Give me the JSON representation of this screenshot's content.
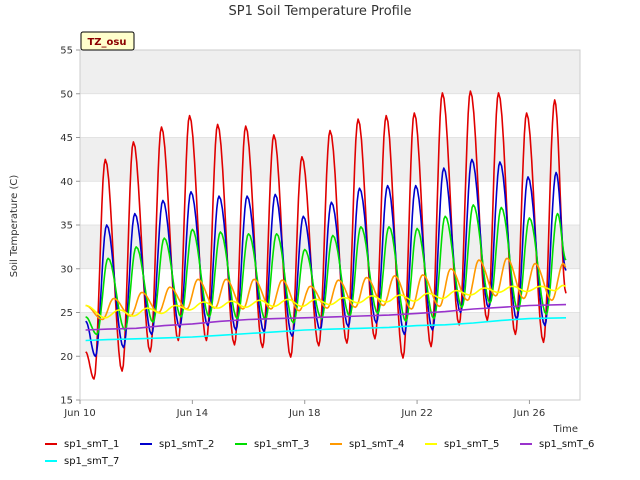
{
  "chart_data": {
    "type": "line",
    "title": "SP1 Soil Temperature Profile",
    "xlabel": "Time",
    "ylabel": "Soil Temperature (C)",
    "badge": "TZ_osu",
    "x_ticks": [
      "Jun 10",
      "Jun 14",
      "Jun 18",
      "Jun 22",
      "Jun 26"
    ],
    "y_ticks": [
      15,
      20,
      25,
      30,
      35,
      40,
      45,
      50,
      55
    ],
    "ylim": [
      15,
      55
    ],
    "xlim_days": [
      10,
      27.8
    ],
    "grid": true,
    "band_color": "#efefef",
    "legend_placement": "bottom",
    "series": [
      {
        "name": "sp1_smT_1",
        "color": "#e00000",
        "peaks": [
          [
            10.9,
            42.5
          ],
          [
            11.9,
            44.5
          ],
          [
            12.9,
            46.2
          ],
          [
            13.9,
            47.5
          ],
          [
            14.9,
            46.5
          ],
          [
            15.9,
            46.3
          ],
          [
            16.9,
            45.3
          ],
          [
            17.9,
            42.8
          ],
          [
            18.9,
            45.8
          ],
          [
            19.9,
            47.1
          ],
          [
            20.9,
            47.5
          ],
          [
            21.9,
            47.8
          ],
          [
            22.9,
            50.1
          ],
          [
            23.9,
            50.3
          ],
          [
            24.9,
            50.1
          ],
          [
            25.9,
            47.8
          ],
          [
            26.9,
            49.3
          ]
        ],
        "troughs": [
          [
            10.5,
            17.4
          ],
          [
            11.5,
            18.3
          ],
          [
            12.5,
            20.5
          ],
          [
            13.5,
            21.8
          ],
          [
            14.5,
            21.8
          ],
          [
            15.5,
            21.3
          ],
          [
            16.5,
            21.0
          ],
          [
            17.5,
            19.9
          ],
          [
            18.5,
            21.2
          ],
          [
            19.5,
            21.5
          ],
          [
            20.5,
            22.0
          ],
          [
            21.5,
            19.8
          ],
          [
            22.5,
            21.1
          ],
          [
            23.5,
            23.6
          ],
          [
            24.5,
            24.1
          ],
          [
            25.5,
            22.5
          ],
          [
            26.5,
            21.6
          ]
        ],
        "start": [
          10.2,
          20.5
        ],
        "end": [
          27.3,
          27.2
        ]
      },
      {
        "name": "sp1_smT_2",
        "color": "#0000cc",
        "peaks": [
          [
            10.95,
            35.0
          ],
          [
            11.95,
            36.3
          ],
          [
            12.95,
            37.8
          ],
          [
            13.95,
            38.8
          ],
          [
            14.95,
            38.3
          ],
          [
            15.95,
            38.3
          ],
          [
            16.95,
            38.5
          ],
          [
            17.95,
            36.0
          ],
          [
            18.95,
            37.6
          ],
          [
            19.95,
            39.2
          ],
          [
            20.95,
            39.5
          ],
          [
            21.95,
            39.5
          ],
          [
            22.95,
            41.5
          ],
          [
            23.95,
            42.5
          ],
          [
            24.95,
            42.2
          ],
          [
            25.95,
            40.5
          ],
          [
            26.95,
            41.0
          ]
        ],
        "troughs": [
          [
            10.55,
            20.0
          ],
          [
            11.55,
            21.0
          ],
          [
            12.55,
            22.5
          ],
          [
            13.55,
            23.3
          ],
          [
            14.55,
            23.5
          ],
          [
            15.55,
            23.0
          ],
          [
            16.55,
            22.8
          ],
          [
            17.55,
            22.3
          ],
          [
            18.55,
            23.0
          ],
          [
            19.55,
            23.4
          ],
          [
            20.55,
            23.8
          ],
          [
            21.55,
            22.5
          ],
          [
            22.55,
            23.0
          ],
          [
            23.55,
            25.0
          ],
          [
            24.55,
            25.5
          ],
          [
            25.55,
            24.2
          ],
          [
            26.55,
            23.5
          ]
        ],
        "start": [
          10.2,
          24.0
        ],
        "end": [
          27.3,
          29.8
        ]
      },
      {
        "name": "sp1_smT_3",
        "color": "#00dd00",
        "peaks": [
          [
            11.0,
            31.2
          ],
          [
            12.0,
            32.5
          ],
          [
            13.0,
            33.5
          ],
          [
            14.0,
            34.5
          ],
          [
            15.0,
            34.2
          ],
          [
            16.0,
            34.0
          ],
          [
            17.0,
            34.0
          ],
          [
            18.0,
            32.2
          ],
          [
            19.0,
            33.8
          ],
          [
            20.0,
            34.8
          ],
          [
            21.0,
            34.8
          ],
          [
            22.0,
            34.6
          ],
          [
            23.0,
            36.0
          ],
          [
            24.0,
            37.3
          ],
          [
            25.0,
            37.0
          ],
          [
            26.0,
            35.8
          ],
          [
            27.0,
            36.3
          ]
        ],
        "troughs": [
          [
            10.6,
            22.5
          ],
          [
            11.6,
            23.0
          ],
          [
            12.6,
            23.9
          ],
          [
            13.6,
            24.5
          ],
          [
            14.6,
            24.5
          ],
          [
            15.6,
            24.3
          ],
          [
            16.6,
            24.2
          ],
          [
            17.6,
            23.8
          ],
          [
            18.6,
            24.3
          ],
          [
            19.6,
            24.6
          ],
          [
            20.6,
            24.9
          ],
          [
            21.6,
            24.0
          ],
          [
            22.6,
            24.3
          ],
          [
            23.6,
            25.6
          ],
          [
            24.6,
            26.1
          ],
          [
            25.6,
            25.2
          ],
          [
            26.6,
            24.8
          ]
        ],
        "start": [
          10.2,
          24.5
        ],
        "end": [
          27.3,
          31.0
        ]
      },
      {
        "name": "sp1_smT_4",
        "color": "#ff9900",
        "peaks": [
          [
            11.2,
            26.6
          ],
          [
            12.2,
            27.3
          ],
          [
            13.2,
            27.9
          ],
          [
            14.2,
            28.8
          ],
          [
            15.2,
            28.8
          ],
          [
            16.2,
            28.8
          ],
          [
            17.2,
            28.7
          ],
          [
            18.2,
            28.0
          ],
          [
            19.2,
            28.7
          ],
          [
            20.2,
            29.0
          ],
          [
            21.2,
            29.2
          ],
          [
            22.2,
            29.3
          ],
          [
            23.2,
            30.0
          ],
          [
            24.2,
            31.0
          ],
          [
            25.2,
            31.2
          ],
          [
            26.2,
            30.6
          ],
          [
            27.2,
            30.6
          ]
        ],
        "troughs": [
          [
            10.8,
            24.2
          ],
          [
            11.8,
            24.6
          ],
          [
            12.8,
            25.0
          ],
          [
            13.8,
            25.4
          ],
          [
            14.8,
            25.5
          ],
          [
            15.8,
            25.4
          ],
          [
            16.8,
            25.4
          ],
          [
            17.8,
            25.2
          ],
          [
            18.8,
            25.5
          ],
          [
            19.8,
            25.6
          ],
          [
            20.8,
            25.8
          ],
          [
            21.8,
            25.4
          ],
          [
            22.8,
            25.7
          ],
          [
            23.8,
            26.4
          ],
          [
            24.8,
            26.9
          ],
          [
            25.8,
            26.6
          ],
          [
            26.8,
            26.4
          ]
        ],
        "start": [
          10.2,
          25.8
        ],
        "end": [
          27.3,
          30.2
        ]
      },
      {
        "name": "sp1_smT_5",
        "color": "#ffff00",
        "peaks": [
          [
            11.4,
            25.3
          ],
          [
            12.4,
            25.5
          ],
          [
            13.4,
            25.8
          ],
          [
            14.4,
            26.2
          ],
          [
            15.4,
            26.3
          ],
          [
            16.4,
            26.4
          ],
          [
            17.4,
            26.5
          ],
          [
            18.4,
            26.5
          ],
          [
            19.4,
            26.7
          ],
          [
            20.4,
            26.9
          ],
          [
            21.4,
            27.0
          ],
          [
            22.4,
            27.2
          ],
          [
            23.4,
            27.5
          ],
          [
            24.4,
            27.8
          ],
          [
            25.4,
            28.0
          ],
          [
            26.4,
            28.0
          ],
          [
            27.2,
            28.1
          ]
        ],
        "troughs": [
          [
            10.9,
            24.4
          ],
          [
            11.9,
            24.6
          ],
          [
            12.9,
            24.9
          ],
          [
            13.9,
            25.3
          ],
          [
            14.9,
            25.5
          ],
          [
            15.9,
            25.6
          ],
          [
            16.9,
            25.7
          ],
          [
            17.9,
            25.7
          ],
          [
            18.9,
            25.9
          ],
          [
            19.9,
            26.1
          ],
          [
            20.9,
            26.2
          ],
          [
            21.9,
            26.3
          ],
          [
            22.9,
            26.6
          ],
          [
            23.9,
            27.0
          ],
          [
            24.9,
            27.3
          ],
          [
            25.9,
            27.4
          ],
          [
            26.9,
            27.5
          ]
        ],
        "start": [
          10.2,
          25.8
        ],
        "end": [
          27.3,
          28.0
        ]
      },
      {
        "name": "sp1_smT_6",
        "color": "#9933cc",
        "line": [
          [
            10.2,
            23.0
          ],
          [
            11.0,
            23.1
          ],
          [
            12.0,
            23.2
          ],
          [
            13.0,
            23.5
          ],
          [
            14.0,
            23.7
          ],
          [
            15.0,
            24.0
          ],
          [
            16.0,
            24.2
          ],
          [
            17.0,
            24.3
          ],
          [
            18.0,
            24.4
          ],
          [
            19.0,
            24.5
          ],
          [
            20.0,
            24.6
          ],
          [
            21.0,
            24.7
          ],
          [
            22.0,
            24.9
          ],
          [
            23.0,
            25.1
          ],
          [
            24.0,
            25.4
          ],
          [
            25.0,
            25.6
          ],
          [
            26.0,
            25.8
          ],
          [
            27.3,
            25.9
          ]
        ]
      },
      {
        "name": "sp1_smT_7",
        "color": "#00ffff",
        "line": [
          [
            10.2,
            21.8
          ],
          [
            11.0,
            21.9
          ],
          [
            12.0,
            22.0
          ],
          [
            13.0,
            22.1
          ],
          [
            14.0,
            22.2
          ],
          [
            15.0,
            22.4
          ],
          [
            16.0,
            22.6
          ],
          [
            17.0,
            22.8
          ],
          [
            18.0,
            23.0
          ],
          [
            19.0,
            23.1
          ],
          [
            20.0,
            23.2
          ],
          [
            21.0,
            23.3
          ],
          [
            22.0,
            23.5
          ],
          [
            23.0,
            23.6
          ],
          [
            24.0,
            23.8
          ],
          [
            25.0,
            24.1
          ],
          [
            26.0,
            24.3
          ],
          [
            27.3,
            24.4
          ]
        ]
      }
    ]
  }
}
